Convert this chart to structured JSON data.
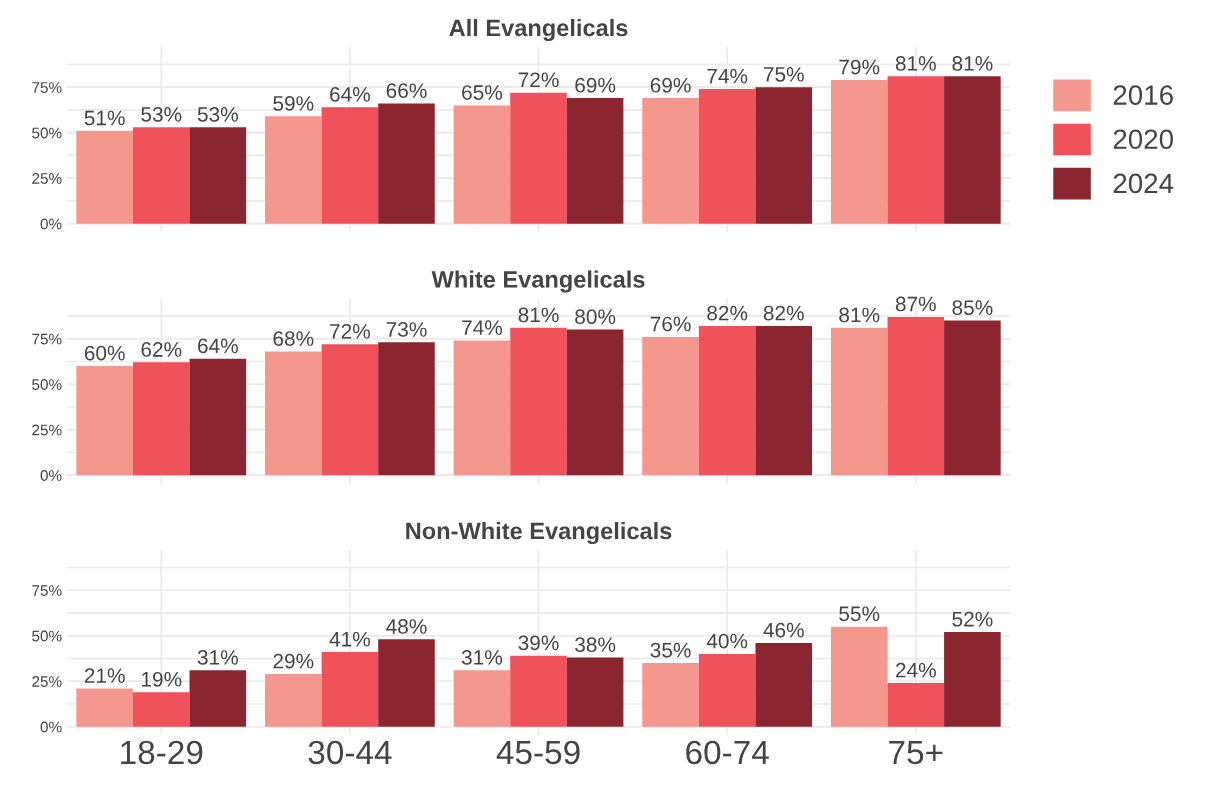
{
  "chart_data": [
    {
      "type": "bar",
      "title": "All Evangelicals",
      "categories": [
        null,
        null,
        null,
        null,
        null
      ],
      "ylim": [
        -4.5,
        97
      ],
      "yticks": [
        {
          "value": 0,
          "label": "0%"
        },
        {
          "value": 12.5,
          "label": null
        },
        {
          "value": 25,
          "label": "25%"
        },
        {
          "value": 37.5,
          "label": null
        },
        {
          "value": 50,
          "label": "50%"
        },
        {
          "value": 62.5,
          "label": null
        },
        {
          "value": 75,
          "label": "75%"
        },
        {
          "value": 87.5,
          "label": null
        }
      ],
      "grid": true,
      "legend": "right",
      "tick_labels": "y",
      "series": [
        {
          "name": "2016",
          "color": "#f4978e",
          "values": [
            51,
            59,
            65,
            69,
            79
          ],
          "value_labels": [
            "51%",
            "59%",
            "65%",
            "69%",
            "79%"
          ]
        },
        {
          "name": "2020",
          "color": "#f0525c",
          "values": [
            53,
            64,
            72,
            74,
            81
          ],
          "value_labels": [
            "53%",
            "64%",
            "72%",
            "74%",
            "81%"
          ]
        },
        {
          "name": "2024",
          "color": "#8b2630",
          "values": [
            53,
            66,
            69,
            75,
            81
          ],
          "value_labels": [
            "53%",
            "66%",
            "69%",
            "75%",
            "81%"
          ]
        }
      ]
    },
    {
      "type": "bar",
      "title": "White Evangelicals",
      "categories": [
        null,
        null,
        null,
        null,
        null
      ],
      "ylim": [
        -4.5,
        97
      ],
      "yticks": [
        {
          "value": 0,
          "label": "0%"
        },
        {
          "value": 12.5,
          "label": null
        },
        {
          "value": 25,
          "label": "25%"
        },
        {
          "value": 37.5,
          "label": null
        },
        {
          "value": 50,
          "label": "50%"
        },
        {
          "value": 62.5,
          "label": null
        },
        {
          "value": 75,
          "label": "75%"
        },
        {
          "value": 87.5,
          "label": null
        }
      ],
      "grid": true,
      "tick_labels": "y",
      "series": [
        {
          "name": "2016",
          "color": "#f4978e",
          "values": [
            60,
            68,
            74,
            76,
            81
          ],
          "value_labels": [
            "60%",
            "68%",
            "74%",
            "76%",
            "81%"
          ]
        },
        {
          "name": "2020",
          "color": "#f0525c",
          "values": [
            62,
            72,
            81,
            82,
            87
          ],
          "value_labels": [
            "62%",
            "72%",
            "81%",
            "82%",
            "87%"
          ]
        },
        {
          "name": "2024",
          "color": "#8b2630",
          "values": [
            64,
            73,
            80,
            82,
            85
          ],
          "value_labels": [
            "64%",
            "73%",
            "80%",
            "82%",
            "85%"
          ]
        }
      ]
    },
    {
      "type": "bar",
      "title": "Non-White Evangelicals",
      "categories": [
        "18-29",
        "30-44",
        "45-59",
        "60-74",
        "75+"
      ],
      "ylim": [
        -4.5,
        97
      ],
      "yticks": [
        {
          "value": 0,
          "label": "0%"
        },
        {
          "value": 12.5,
          "label": null
        },
        {
          "value": 25,
          "label": "25%"
        },
        {
          "value": 37.5,
          "label": null
        },
        {
          "value": 50,
          "label": "50%"
        },
        {
          "value": 62.5,
          "label": null
        },
        {
          "value": 75,
          "label": "75%"
        },
        {
          "value": 87.5,
          "label": null
        }
      ],
      "grid": true,
      "series": [
        {
          "name": "2016",
          "color": "#f4978e",
          "values": [
            21,
            29,
            31,
            35,
            55
          ],
          "value_labels": [
            "21%",
            "29%",
            "31%",
            "35%",
            "55%"
          ]
        },
        {
          "name": "2020",
          "color": "#f0525c",
          "values": [
            19,
            41,
            39,
            40,
            24
          ],
          "value_labels": [
            "19%",
            "41%",
            "39%",
            "40%",
            "24%"
          ]
        },
        {
          "name": "2024",
          "color": "#8b2630",
          "values": [
            31,
            48,
            38,
            46,
            52
          ],
          "value_labels": [
            "31%",
            "48%",
            "38%",
            "46%",
            "52%"
          ]
        }
      ]
    }
  ]
}
